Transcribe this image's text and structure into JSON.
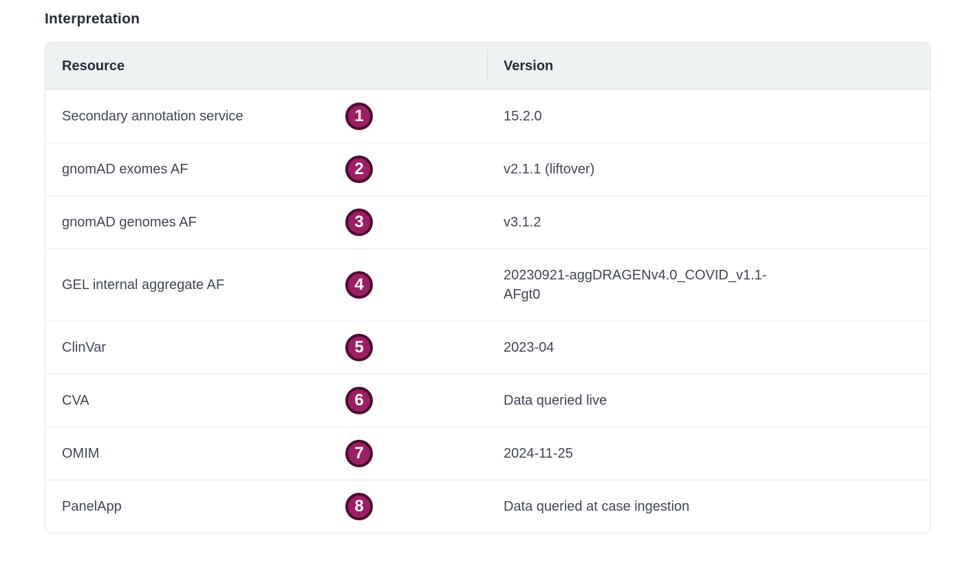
{
  "page": {
    "title": "Interpretation"
  },
  "colors": {
    "badge_fill": "#9c1f63",
    "badge_ring": "#4a0b2f",
    "header_bg": "#eef1f2",
    "table_border": "#dfe3e5",
    "header_text": "#242b39",
    "cell_text": "#3f4654"
  },
  "table": {
    "columns": {
      "resource": "Resource",
      "version": "Version"
    },
    "rows": [
      {
        "resource": "Secondary annotation service",
        "badge": "1",
        "version": "15.2.0"
      },
      {
        "resource": "gnomAD exomes AF",
        "badge": "2",
        "version": "v2.1.1 (liftover)"
      },
      {
        "resource": "gnomAD genomes AF",
        "badge": "3",
        "version": "v3.1.2"
      },
      {
        "resource": "GEL internal aggregate AF",
        "badge": "4",
        "version": "20230921-aggDRAGENv4.0_COVID_v1.1-AFgt0"
      },
      {
        "resource": "ClinVar",
        "badge": "5",
        "version": "2023-04"
      },
      {
        "resource": "CVA",
        "badge": "6",
        "version": "Data queried live"
      },
      {
        "resource": "OMIM",
        "badge": "7",
        "version": "2024-11-25"
      },
      {
        "resource": "PanelApp",
        "badge": "8",
        "version": "Data queried at case ingestion"
      }
    ]
  }
}
